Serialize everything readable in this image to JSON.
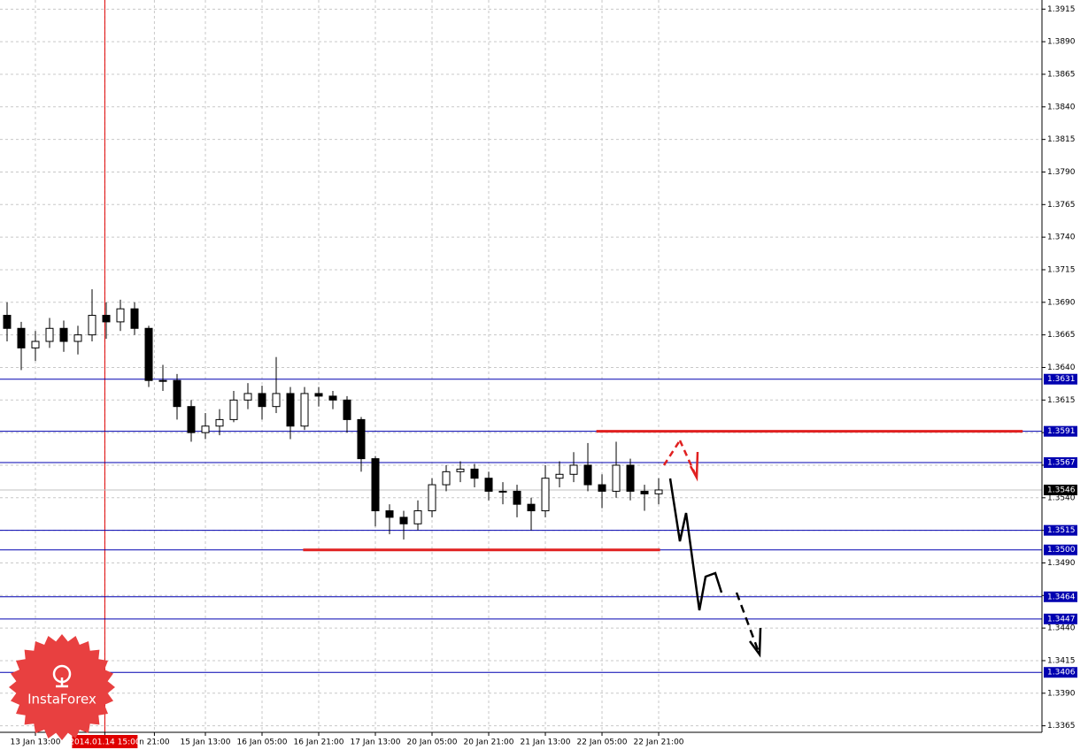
{
  "chart_data": {
    "type": "candlestick",
    "watermark": "InstaForex",
    "xlim": [
      -0.5,
      73.06
    ],
    "ylim": [
      1.336,
      1.3922
    ],
    "xticks": [
      {
        "value": 2,
        "label": "13 Jan 13:00"
      },
      {
        "value": 6.9,
        "label": "2014.01.14 15:00"
      },
      {
        "value": 10.4,
        "label": "n 21:00"
      },
      {
        "value": 14,
        "label": "15 Jan 13:00"
      },
      {
        "value": 18,
        "label": "16 Jan 05:00"
      },
      {
        "value": 22,
        "label": "16 Jan 21:00"
      },
      {
        "value": 26,
        "label": "17 Jan 13:00"
      },
      {
        "value": 30,
        "label": "20 Jan 05:00"
      },
      {
        "value": 34,
        "label": "20 Jan 21:00"
      },
      {
        "value": 38,
        "label": "21 Jan 13:00"
      },
      {
        "value": 42,
        "label": "22 Jan 05:00"
      },
      {
        "value": 46,
        "label": "22 Jan 21:00"
      }
    ],
    "yticks": [
      1.3915,
      {
        "value": 1.389,
        "label": "1.3890"
      },
      1.3865,
      {
        "value": 1.384,
        "label": "1.3840"
      },
      1.3815,
      {
        "value": 1.379,
        "label": "1.3790"
      },
      1.3765,
      {
        "value": 1.374,
        "label": "1.3740"
      },
      1.3715,
      {
        "value": 1.369,
        "label": "1.3690"
      },
      1.3665,
      {
        "value": 1.364,
        "label": "1.3640"
      },
      1.3615,
      {
        "value": 1.359,
        "label": "1.3590"
      },
      1.3565,
      {
        "value": 1.354,
        "label": "1.3540"
      },
      1.3515,
      {
        "value": 1.349,
        "label": "1.3490"
      },
      1.3465,
      {
        "value": 1.344,
        "label": "1.3440"
      },
      1.3415,
      {
        "value": 1.339,
        "label": "1.3390"
      },
      1.3365
    ],
    "grid": true,
    "highlight_color": "#e00000",
    "level_color": "#0000b0",
    "levels": [
      1.3631,
      1.3591,
      1.3567,
      1.3515,
      {
        "value": 1.35,
        "label": "1.3500"
      },
      1.3464,
      1.3447,
      1.3406
    ],
    "last_price": 1.3546,
    "zones": [
      {
        "value": 1.3591,
        "x": [
          41.6,
          71.7
        ]
      },
      {
        "value": 1.35,
        "x": [
          20.9,
          46.1
        ]
      }
    ],
    "zone_color": "#e02020",
    "open": [
      1.368,
      1.367,
      1.3655,
      1.366,
      1.367,
      1.366,
      1.3665,
      1.368,
      1.3675,
      1.3685,
      1.367,
      1.363,
      1.363,
      1.361,
      1.359,
      1.3595,
      1.36,
      1.3615,
      1.362,
      1.361,
      1.362,
      1.3595,
      1.362,
      1.3618,
      1.3615,
      1.36,
      1.357,
      1.353,
      1.3525,
      1.352,
      1.353,
      1.355,
      1.356,
      1.3562,
      1.3555,
      1.3545,
      1.3545,
      1.3535,
      1.353,
      1.3555,
      1.3558,
      1.3565,
      1.355,
      1.3545,
      1.3565,
      1.3545,
      1.3543
    ],
    "high": [
      1.369,
      1.3675,
      1.3668,
      1.3678,
      1.3676,
      1.3672,
      1.37,
      1.369,
      1.3692,
      1.369,
      1.3672,
      1.3642,
      1.3635,
      1.3615,
      1.3605,
      1.3608,
      1.3622,
      1.3628,
      1.3626,
      1.3648,
      1.3625,
      1.3625,
      1.3625,
      1.3622,
      1.3618,
      1.3602,
      1.3572,
      1.3535,
      1.353,
      1.3538,
      1.3555,
      1.3565,
      1.3568,
      1.3566,
      1.356,
      1.3552,
      1.355,
      1.354,
      1.3565,
      1.3568,
      1.3575,
      1.3582,
      1.3558,
      1.3583,
      1.357,
      1.355,
      1.3555
    ],
    "low": [
      1.366,
      1.3638,
      1.3645,
      1.3655,
      1.3652,
      1.365,
      1.366,
      1.3662,
      1.3668,
      1.3665,
      1.3625,
      1.3622,
      1.36,
      1.3583,
      1.3585,
      1.3588,
      1.3598,
      1.3608,
      1.36,
      1.3605,
      1.3585,
      1.3592,
      1.361,
      1.3608,
      1.359,
      1.356,
      1.3518,
      1.3512,
      1.3508,
      1.3515,
      1.3525,
      1.3545,
      1.3552,
      1.3548,
      1.3538,
      1.3535,
      1.3525,
      1.3515,
      1.3525,
      1.3548,
      1.3552,
      1.3545,
      1.3532,
      1.354,
      1.3538,
      1.353,
      1.3535
    ],
    "close": [
      1.367,
      1.3655,
      1.366,
      1.367,
      1.366,
      1.3665,
      1.368,
      1.3675,
      1.3685,
      1.367,
      1.363,
      1.363,
      1.361,
      1.359,
      1.3595,
      1.36,
      1.3615,
      1.362,
      1.361,
      1.362,
      1.3595,
      1.362,
      1.3618,
      1.3615,
      1.36,
      1.357,
      1.353,
      1.3525,
      1.352,
      1.353,
      1.355,
      1.356,
      1.3562,
      1.3555,
      1.3545,
      1.3545,
      1.3535,
      1.353,
      1.3555,
      1.3558,
      1.3565,
      1.355,
      1.3545,
      1.3565,
      1.3545,
      1.3543,
      1.3546
    ]
  }
}
